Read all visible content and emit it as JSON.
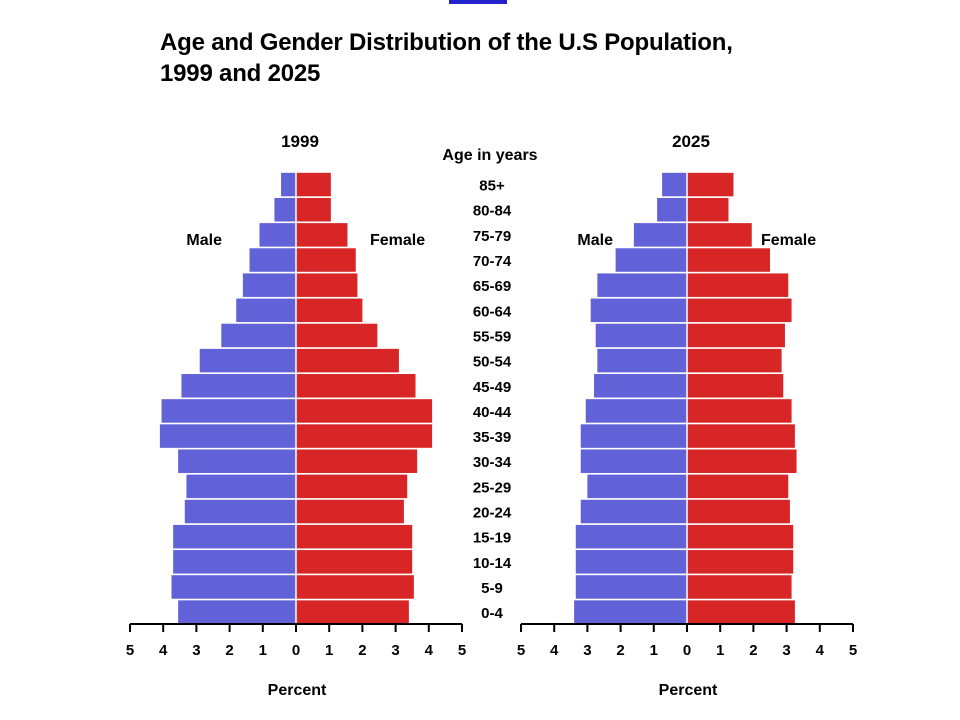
{
  "colors": {
    "male": "#6161d8",
    "female": "#d82626",
    "top_bar": "#2222cc"
  },
  "chart_data": {
    "type": "bar",
    "title_line1": "Age and Gender Distribution of the U.S Population,",
    "title_line2": "1999 and 2025",
    "age_axis_label": "Age in years",
    "categories": [
      "85+",
      "80-84",
      "75-79",
      "70-74",
      "65-69",
      "60-64",
      "55-59",
      "50-54",
      "45-49",
      "40-44",
      "35-39",
      "30-34",
      "25-29",
      "20-24",
      "15-19",
      "10-14",
      "5-9",
      "0-4"
    ],
    "xlabel": "Percent",
    "xlim": [
      0,
      5
    ],
    "xticks": [
      "5",
      "4",
      "3",
      "2",
      "1",
      "0",
      "1",
      "2",
      "3",
      "4",
      "5"
    ],
    "panels": [
      {
        "year": "1999",
        "series": [
          {
            "name": "Male",
            "values": [
              0.45,
              0.65,
              1.1,
              1.4,
              1.6,
              1.8,
              2.25,
              2.9,
              3.45,
              4.05,
              4.1,
              3.55,
              3.3,
              3.35,
              3.7,
              3.7,
              3.75,
              3.55
            ]
          },
          {
            "name": "Female",
            "values": [
              1.05,
              1.05,
              1.55,
              1.8,
              1.85,
              2.0,
              2.45,
              3.1,
              3.6,
              4.1,
              4.1,
              3.65,
              3.35,
              3.25,
              3.5,
              3.5,
              3.55,
              3.4
            ]
          }
        ]
      },
      {
        "year": "2025",
        "series": [
          {
            "name": "Male",
            "values": [
              0.75,
              0.9,
              1.6,
              2.15,
              2.7,
              2.9,
              2.75,
              2.7,
              2.8,
              3.05,
              3.2,
              3.2,
              3.0,
              3.2,
              3.35,
              3.35,
              3.35,
              3.4
            ]
          },
          {
            "name": "Female",
            "values": [
              1.4,
              1.25,
              1.95,
              2.5,
              3.05,
              3.15,
              2.95,
              2.85,
              2.9,
              3.15,
              3.25,
              3.3,
              3.05,
              3.1,
              3.2,
              3.2,
              3.15,
              3.25
            ]
          }
        ]
      }
    ]
  }
}
